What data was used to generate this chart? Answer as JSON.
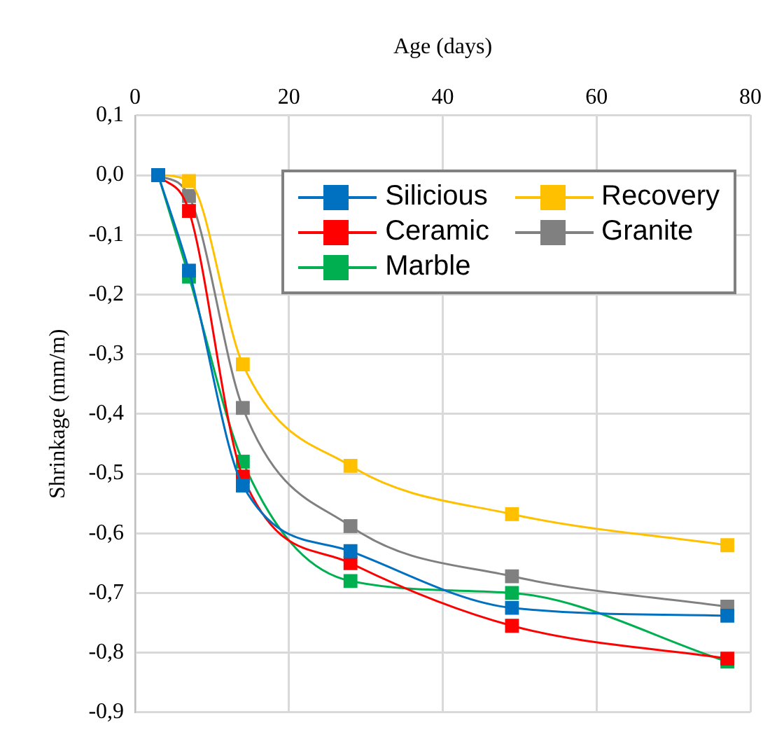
{
  "chart_data": {
    "type": "line",
    "xlabel": "Age (days)",
    "ylabel": "Shrinkage (mm/m)",
    "xlim": [
      0,
      80
    ],
    "xticks": [
      0,
      20,
      40,
      60,
      80
    ],
    "ylim": [
      -0.9,
      0.1
    ],
    "yticks": [
      {
        "value": 0.1,
        "label": "0,1"
      },
      {
        "value": 0,
        "label": "0,0"
      },
      {
        "value": -0.1,
        "label": "-0,1"
      },
      {
        "value": -0.2,
        "label": "-0,2"
      },
      {
        "value": -0.3,
        "label": "-0,3"
      },
      {
        "value": -0.4,
        "label": "-0,4"
      },
      {
        "value": -0.5,
        "label": "-0,5"
      },
      {
        "value": -0.6,
        "label": "-0,6"
      },
      {
        "value": -0.7,
        "label": "-0,7"
      },
      {
        "value": -0.8,
        "label": "-0,8"
      },
      {
        "value": -0.9,
        "label": "-0,9"
      }
    ],
    "x": [
      3,
      7,
      14,
      28,
      49,
      77
    ],
    "grid": true,
    "legend": "top right",
    "marker": "square",
    "line_style": "solid",
    "series": [
      {
        "name": "Silicious",
        "color": "#0070c0",
        "values": [
          0,
          -0.16,
          -0.52,
          -0.63,
          -0.725,
          -0.738
        ]
      },
      {
        "name": "Ceramic",
        "color": "#ff0000",
        "values": [
          0,
          -0.06,
          -0.505,
          -0.65,
          -0.755,
          -0.81
        ]
      },
      {
        "name": "Marble",
        "color": "#00b050",
        "values": [
          0,
          -0.17,
          -0.48,
          -0.68,
          -0.7,
          -0.815
        ]
      },
      {
        "name": "Recovery",
        "color": "#ffc000",
        "values": [
          0,
          -0.01,
          -0.317,
          -0.487,
          -0.568,
          -0.62
        ]
      },
      {
        "name": "Granite",
        "color": "#808080",
        "values": [
          0,
          -0.035,
          -0.39,
          -0.588,
          -0.672,
          -0.723
        ]
      }
    ]
  }
}
